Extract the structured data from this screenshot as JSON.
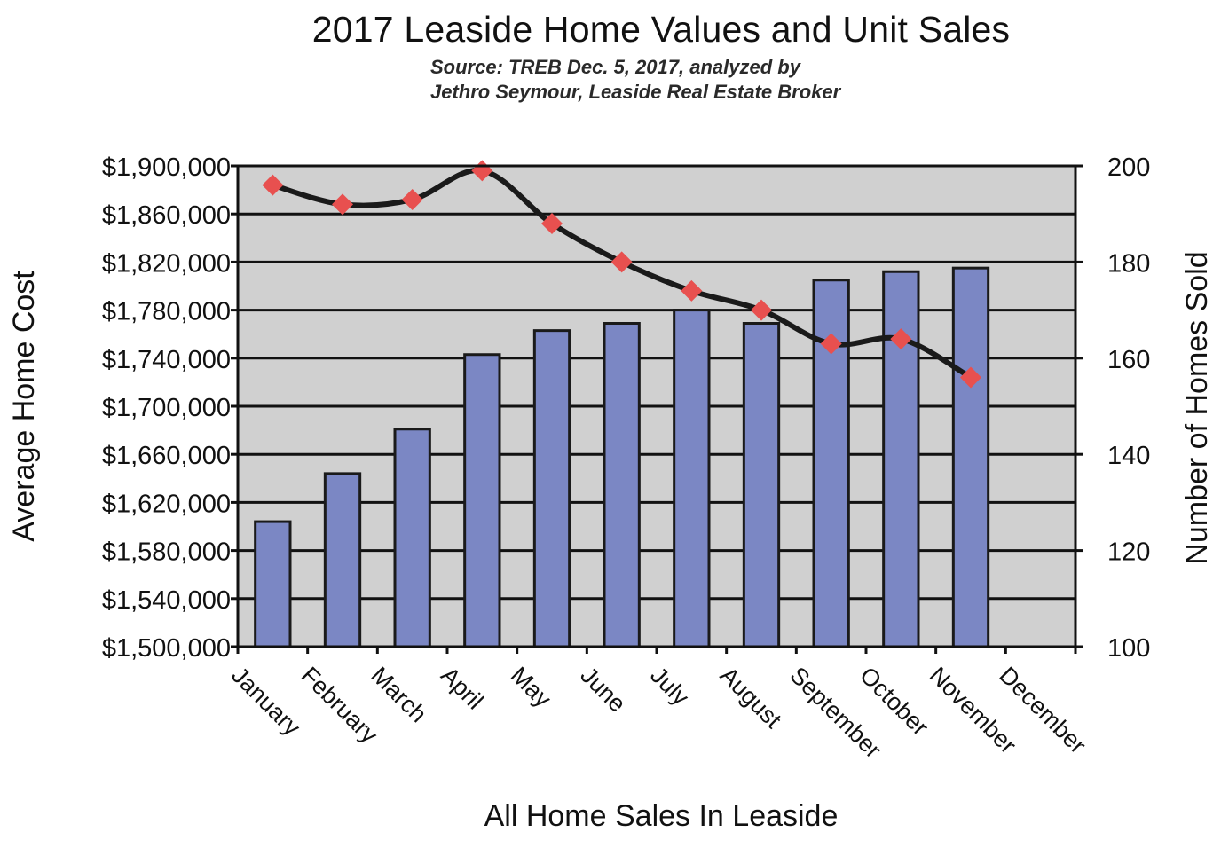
{
  "chart_data": {
    "type": "bar",
    "title": "2017 Leaside Home Values and Unit Sales",
    "subtitle_lines": [
      "Source:  TREB Dec. 5, 2017, analyzed by",
      "Jethro Seymour, Leaside Real Estate Broker"
    ],
    "xlabel": "All Home Sales In Leaside",
    "ylabel_left": "Average Home Cost",
    "ylabel_right": "Number of Homes Sold",
    "categories": [
      "January",
      "February",
      "March",
      "April",
      "May",
      "June",
      "July",
      "August",
      "September",
      "October",
      "November",
      "December"
    ],
    "left_axis": {
      "range": [
        1500000,
        1900000
      ],
      "tick_values": [
        1500000,
        1540000,
        1580000,
        1620000,
        1660000,
        1700000,
        1740000,
        1780000,
        1820000,
        1860000,
        1900000
      ],
      "tick_labels": [
        "$1,500,000",
        "$1,540,000",
        "$1,580,000",
        "$1,620,000",
        "$1,660,000",
        "$1,700,000",
        "$1,740,000",
        "$1,780,000",
        "$1,820,000",
        "$1,860,000",
        "$1,900,000"
      ]
    },
    "right_axis": {
      "range": [
        100,
        200
      ],
      "tick_values": [
        100,
        120,
        140,
        160,
        180,
        200
      ],
      "tick_labels": [
        "100",
        "120",
        "140",
        "160",
        "180",
        "200"
      ]
    },
    "series": [
      {
        "type": "bar",
        "axis": "left",
        "color": "#7b87c4",
        "values": [
          1604000,
          1644000,
          1681000,
          1743000,
          1763000,
          1769000,
          1780000,
          1769000,
          1805000,
          1812000,
          1815000,
          null
        ]
      },
      {
        "type": "line",
        "axis": "right",
        "line_color": "#1a1a1a",
        "marker_color": "#e8504f",
        "marker": "diamond",
        "values": [
          196,
          192,
          193,
          199,
          188,
          180,
          174,
          170,
          163,
          164,
          156,
          null
        ]
      }
    ],
    "plot_background": "#d0d0d0",
    "grid": true,
    "legend": false
  }
}
